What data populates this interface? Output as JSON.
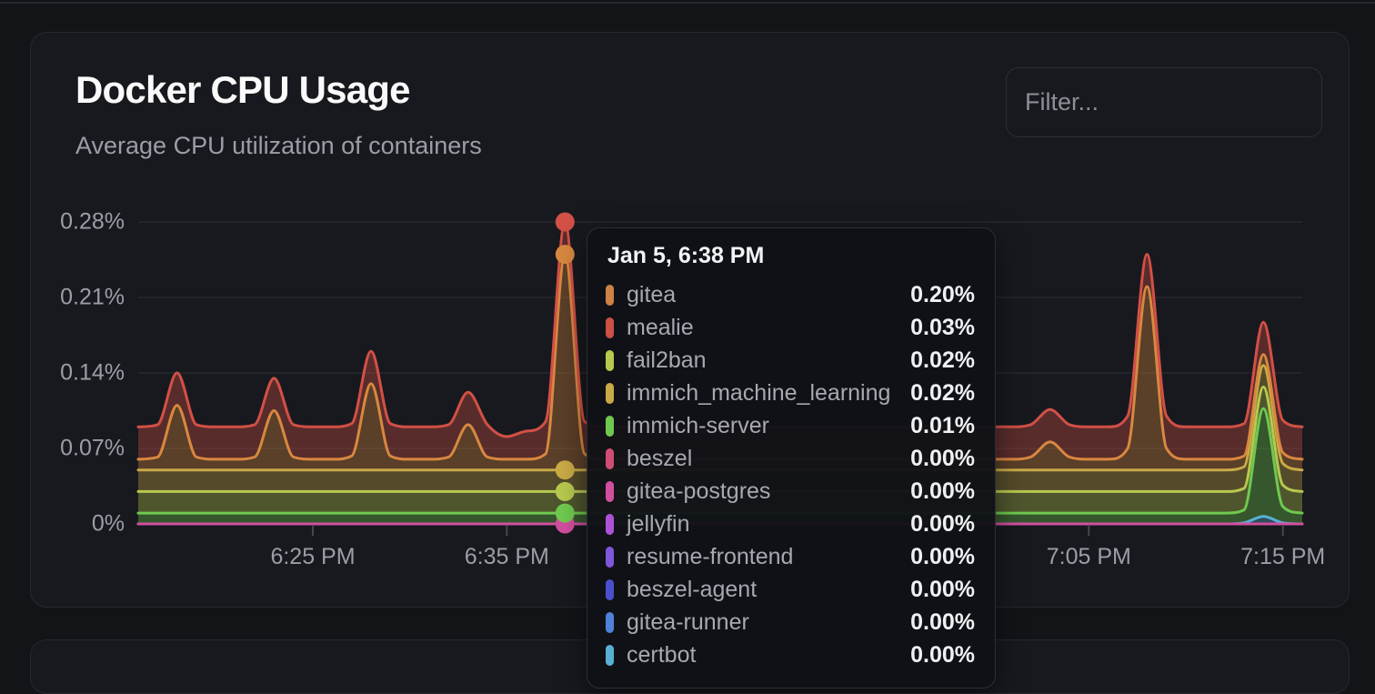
{
  "card": {
    "title": "Docker CPU Usage",
    "subtitle": "Average CPU utilization of containers",
    "filter_placeholder": "Filter..."
  },
  "tooltip": {
    "title": "Jan 5, 6:38 PM",
    "rows": [
      {
        "name": "gitea",
        "color": "#cd8145",
        "value": "0.20%"
      },
      {
        "name": "mealie",
        "color": "#cb5045",
        "value": "0.03%"
      },
      {
        "name": "fail2ban",
        "color": "#b7c94e",
        "value": "0.02%"
      },
      {
        "name": "immich_machine_learning",
        "color": "#c9aa46",
        "value": "0.02%"
      },
      {
        "name": "immich-server",
        "color": "#6fc94e",
        "value": "0.01%"
      },
      {
        "name": "beszel",
        "color": "#cf4d74",
        "value": "0.00%"
      },
      {
        "name": "gitea-postgres",
        "color": "#d14f9f",
        "value": "0.00%"
      },
      {
        "name": "jellyfin",
        "color": "#ad52d6",
        "value": "0.00%"
      },
      {
        "name": "resume-frontend",
        "color": "#7e57da",
        "value": "0.00%"
      },
      {
        "name": "beszel-agent",
        "color": "#4a50cd",
        "value": "0.00%"
      },
      {
        "name": "gitea-runner",
        "color": "#5081d8",
        "value": "0.00%"
      },
      {
        "name": "certbot",
        "color": "#58b0d4",
        "value": "0.00%"
      }
    ]
  },
  "chart_data": {
    "type": "area",
    "stacked": true,
    "unit": "%",
    "x_start": "6:16 PM",
    "x_interval_minutes": 1,
    "x_count": 61,
    "ylim": [
      0,
      0.295
    ],
    "grid": true,
    "fill_opacity": 0.35,
    "y_ticks": [
      {
        "label": "0.28%",
        "value": 0.28
      },
      {
        "label": "0.21%",
        "value": 0.21
      },
      {
        "label": "0.14%",
        "value": 0.14
      },
      {
        "label": "0.07%",
        "value": 0.07
      },
      {
        "label": "0%",
        "value": 0
      }
    ],
    "x_ticks": [
      {
        "label": "6:25 PM",
        "index": 9
      },
      {
        "label": "6:35 PM",
        "index": 19
      },
      {
        "label": "7:05 PM",
        "index": 49
      },
      {
        "label": "7:15 PM",
        "index": 59
      }
    ],
    "hover": {
      "index": 22,
      "label": "Jan 5, 6:38 PM"
    },
    "series_note": "stack order bottom-to-top; values(%) = base everywhere except overrides at minute indices",
    "series": [
      {
        "name": "jellyfin",
        "color": "#ad52d6",
        "base": 0,
        "overrides": {}
      },
      {
        "name": "resume-frontend",
        "color": "#7e57da",
        "base": 0,
        "overrides": {}
      },
      {
        "name": "beszel-agent",
        "color": "#4a50cd",
        "base": 0,
        "overrides": {}
      },
      {
        "name": "gitea-runner",
        "color": "#5081d8",
        "base": 0,
        "overrides": {}
      },
      {
        "name": "beszel",
        "color": "#cf4d74",
        "base": 0,
        "overrides": {}
      },
      {
        "name": "gitea-postgres",
        "color": "#d14f9f",
        "base": 0,
        "overrides": {}
      },
      {
        "name": "certbot",
        "color": "#58b0d4",
        "base": 0,
        "stroke_first": true,
        "overrides": {
          "57": 0.001,
          "58": 0.007,
          "59": 0.001
        }
      },
      {
        "name": "immich-server",
        "color": "#6fc94e",
        "base": 0.01,
        "overrides": {
          "57": 0.012,
          "58": 0.1,
          "59": 0.015
        }
      },
      {
        "name": "fail2ban",
        "color": "#b7c94e",
        "base": 0.02,
        "overrides": {}
      },
      {
        "name": "immich_machine_learning",
        "color": "#c9aa46",
        "base": 0.02,
        "overrides": {}
      },
      {
        "name": "gitea",
        "color": "#d8883f",
        "base": 0.01,
        "overrides": {
          "1": 0.012,
          "2": 0.06,
          "3": 0.012,
          "6": 0.012,
          "7": 0.055,
          "8": 0.012,
          "11": 0.013,
          "12": 0.08,
          "13": 0.013,
          "16": 0.012,
          "17": 0.042,
          "18": 0.012,
          "21": 0.015,
          "22": 0.2,
          "23": 0.015,
          "46": 0.012,
          "47": 0.026,
          "48": 0.012,
          "51": 0.02,
          "52": 0.17,
          "53": 0.02
        }
      },
      {
        "name": "mealie",
        "color": "#d25046",
        "base": 0.03,
        "overrides": {
          "19": 0.021,
          "20": 0.026
        }
      }
    ]
  }
}
